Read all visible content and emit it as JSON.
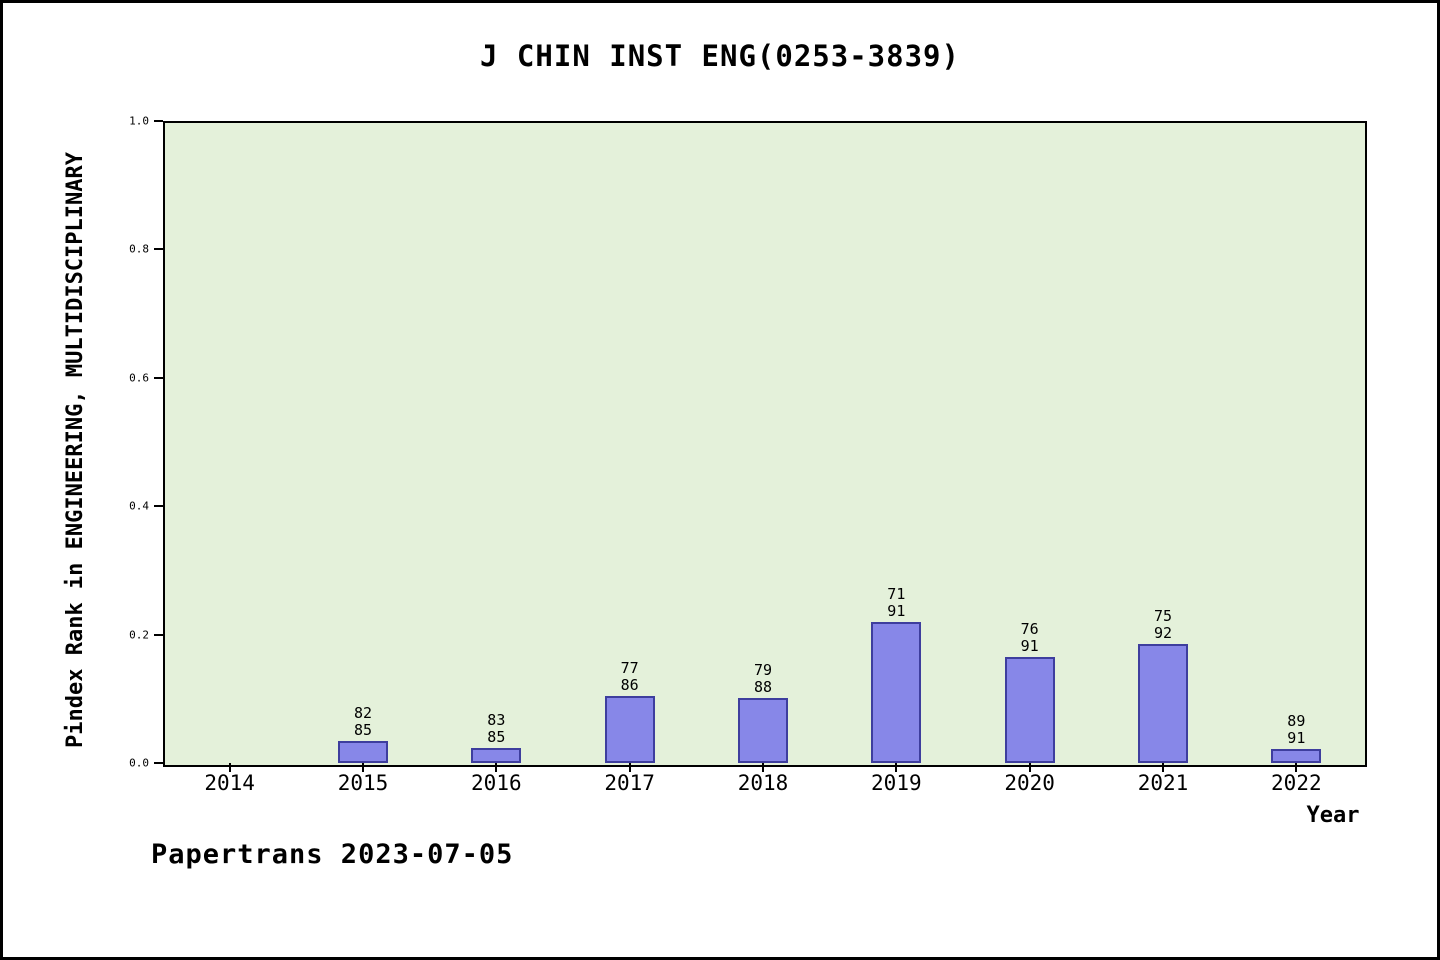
{
  "title": "J CHIN INST ENG(0253-3839)",
  "footer": "Papertrans 2023-07-05",
  "chart_data": {
    "type": "bar",
    "title": "J CHIN INST ENG(0253-3839)",
    "xlabel": "Year",
    "ylabel": "Pindex Rank in ENGINEERING, MULTIDISCIPLINARY",
    "ylim": [
      0.0,
      1.0
    ],
    "yticks": [
      0.0,
      0.2,
      0.4,
      0.6,
      0.8,
      1.0
    ],
    "grid": false,
    "legend": false,
    "categories": [
      "2014",
      "2015",
      "2016",
      "2017",
      "2018",
      "2019",
      "2020",
      "2021",
      "2022"
    ],
    "values": [
      null,
      0.035,
      0.024,
      0.105,
      0.102,
      0.22,
      0.165,
      0.185,
      0.022
    ],
    "bar_labels": [
      null,
      [
        "82",
        "85"
      ],
      [
        "83",
        "85"
      ],
      [
        "77",
        "86"
      ],
      [
        "79",
        "88"
      ],
      [
        "71",
        "91"
      ],
      [
        "76",
        "91"
      ],
      [
        "75",
        "92"
      ],
      [
        "89",
        "91"
      ]
    ],
    "colors": {
      "bar_fill": "#8787e8",
      "bar_edge": "#3e3e9e",
      "plot_bg": "#e4f1da",
      "text": "#000000"
    }
  }
}
